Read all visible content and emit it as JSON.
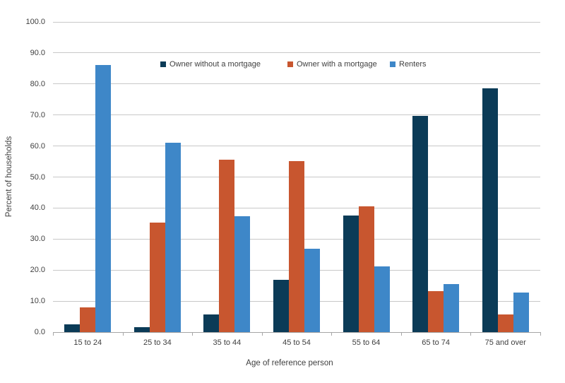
{
  "chart_data": {
    "type": "bar",
    "title": "",
    "categories": [
      "15 to 24",
      "25 to 34",
      "35 to 44",
      "45 to 54",
      "55 to 64",
      "65 to 74",
      "75 and over"
    ],
    "series": [
      {
        "name": "Owner without a mortgage",
        "color": "#0b3b57",
        "values": [
          2.5,
          1.6,
          5.6,
          16.8,
          37.5,
          69.7,
          78.7
        ]
      },
      {
        "name": "Owner with a mortgage",
        "color": "#c8562f",
        "values": [
          8.0,
          35.4,
          55.6,
          55.2,
          40.5,
          13.2,
          5.6
        ]
      },
      {
        "name": "Renters",
        "color": "#3e87c8",
        "values": [
          86.2,
          61.0,
          37.3,
          26.8,
          21.1,
          15.4,
          12.8
        ]
      }
    ],
    "xlabel": "Age of reference person",
    "ylabel": "Percent of households",
    "ylim": [
      0,
      100
    ],
    "ytick_step": 10,
    "ytick_decimals": 1,
    "grid": true,
    "legend_position": "top-inside-horizontal"
  },
  "colors": {
    "background": "#ffffff",
    "gridline": "#c8c8c8",
    "axis_line": "#a6a6a6",
    "text": "#3f3f3f"
  }
}
